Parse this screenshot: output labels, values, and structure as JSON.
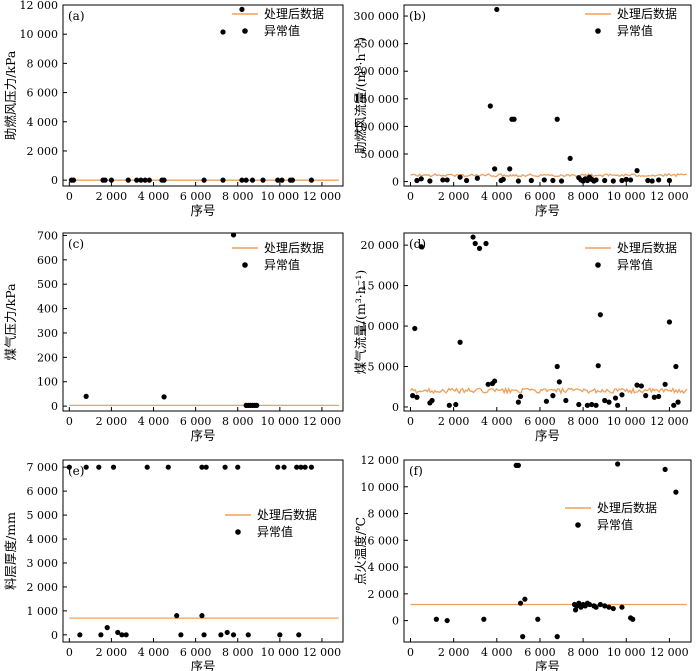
{
  "colors": {
    "line": "#f0a05a",
    "marker": "#000000",
    "axis": "#000000"
  },
  "legend": {
    "line": "处理后数据",
    "marker": "异常值"
  },
  "chart_data": [
    {
      "id": "a",
      "tag": "(a)",
      "type": "scatter",
      "xlabel": "序号",
      "ylabel": "助燃风压力/kPa",
      "xlim": [
        -300,
        13000
      ],
      "ylim": [
        -400,
        12000
      ],
      "xticks": [
        0,
        2000,
        4000,
        6000,
        8000,
        10000,
        12000
      ],
      "xticklabels": [
        "0",
        "2 000",
        "4 000",
        "6 000",
        "8 000",
        "10 000",
        "12 000"
      ],
      "yticks": [
        0,
        2000,
        4000,
        6000,
        8000,
        10000,
        12000
      ],
      "yticklabels": [
        "0",
        "2 000",
        "4 000",
        "6 000",
        "8 000",
        "10 000",
        "12 000"
      ],
      "legend_pos": "top-right",
      "processed_level": 0,
      "processed_noise": 0,
      "outliers": {
        "x": [
          100,
          200,
          1600,
          1700,
          2000,
          2800,
          3200,
          3400,
          3600,
          3800,
          4400,
          4500,
          6400,
          7300,
          8200,
          8400,
          8700,
          9200,
          9900,
          10100,
          10500,
          10600,
          11500,
          7300,
          8200
        ],
        "y": [
          0,
          0,
          0,
          0,
          0,
          0,
          0,
          0,
          0,
          0,
          0,
          0,
          0,
          0,
          0,
          0,
          0,
          0,
          0,
          0,
          0,
          0,
          0,
          10150,
          11700
        ]
      }
    },
    {
      "id": "b",
      "tag": "(b)",
      "type": "scatter",
      "xlabel": "序号",
      "ylabel": "助燃风流量/(m³·h⁻¹)",
      "xlim": [
        -300,
        13000
      ],
      "ylim": [
        -8000,
        320000
      ],
      "xticks": [
        0,
        2000,
        4000,
        6000,
        8000,
        10000,
        12000
      ],
      "xticklabels": [
        "0",
        "2 000",
        "4 000",
        "6 000",
        "8 000",
        "10 000",
        "12 000"
      ],
      "yticks": [
        0,
        50000,
        100000,
        150000,
        200000,
        250000,
        300000
      ],
      "yticklabels": [
        "0",
        "50 000",
        "100 000",
        "150 000",
        "200 000",
        "250 000",
        "300 000"
      ],
      "legend_pos": "top-right",
      "processed_level": 11500,
      "processed_noise": 2500,
      "outliers": {
        "x": [
          500,
          1700,
          2300,
          3700,
          3900,
          4000,
          4600,
          4700,
          4800,
          6800,
          7400,
          300,
          900,
          1500,
          2600,
          3100,
          4200,
          4300,
          5000,
          5600,
          6200,
          6600,
          7000,
          7800,
          7900,
          8000,
          8100,
          8200,
          8300,
          8400,
          8600,
          9000,
          9400,
          9800,
          10200,
          10500,
          11000,
          11200,
          11500,
          12000,
          8500,
          10000
        ],
        "y": [
          5000,
          3000,
          8000,
          137000,
          23000,
          312000,
          23000,
          113000,
          113000,
          113000,
          42000,
          2000,
          1000,
          3000,
          2000,
          6000,
          2000,
          4000,
          1000,
          2000,
          3000,
          2000,
          1000,
          7000,
          3000,
          1000,
          5000,
          2000,
          8000,
          4000,
          3000,
          2000,
          1000,
          2000,
          3000,
          20000,
          2000,
          1000,
          3000,
          2000,
          1000,
          4000
        ]
      }
    },
    {
      "id": "c",
      "tag": "(c)",
      "type": "scatter",
      "xlabel": "序号",
      "ylabel": "煤气压力/kPa",
      "xlim": [
        -300,
        13000
      ],
      "ylim": [
        -20,
        710
      ],
      "xticks": [
        0,
        2000,
        4000,
        6000,
        8000,
        10000,
        12000
      ],
      "xticklabels": [
        "0",
        "2 000",
        "4 000",
        "6 000",
        "8 000",
        "10 000",
        "12 000"
      ],
      "yticks": [
        0,
        100,
        200,
        300,
        400,
        500,
        600,
        700
      ],
      "yticklabels": [
        "0",
        "100",
        "200",
        "300",
        "400",
        "500",
        "600",
        "700"
      ],
      "legend_pos": "top-right",
      "processed_level": 3,
      "processed_noise": 0,
      "outliers": {
        "x": [
          800,
          4500,
          7800,
          8400,
          8500,
          8600,
          8700,
          8800,
          8900
        ],
        "y": [
          40,
          38,
          702,
          3,
          3,
          3,
          3,
          3,
          3
        ]
      }
    },
    {
      "id": "d",
      "tag": "(d)",
      "type": "scatter",
      "xlabel": "序号",
      "ylabel": "煤气流量/(m³·h⁻¹)",
      "xlim": [
        -300,
        13000
      ],
      "ylim": [
        -500,
        21500
      ],
      "xticks": [
        0,
        2000,
        4000,
        6000,
        8000,
        10000,
        12000
      ],
      "xticklabels": [
        "0",
        "2 000",
        "4 000",
        "6 000",
        "8 000",
        "10 000",
        "12 000"
      ],
      "yticks": [
        0,
        5000,
        10000,
        15000,
        20000
      ],
      "yticklabels": [
        "0",
        "5 000",
        "10 000",
        "15 000",
        "20 000"
      ],
      "legend_pos": "top-right",
      "processed_level": 2000,
      "processed_noise": 300,
      "outliers": {
        "x": [
          200,
          300,
          500,
          900,
          1800,
          2100,
          2300,
          2900,
          3000,
          3200,
          3500,
          3600,
          3800,
          3900,
          5000,
          5100,
          6300,
          6600,
          6800,
          6900,
          7200,
          7800,
          8200,
          8400,
          8600,
          8700,
          8800,
          9000,
          9200,
          9500,
          9600,
          9800,
          10500,
          10700,
          10900,
          11300,
          11500,
          11800,
          12000,
          12200,
          12300,
          12400,
          100,
          1000
        ],
        "y": [
          9700,
          1200,
          19800,
          500,
          200,
          300,
          8000,
          21000,
          20200,
          19600,
          20200,
          2800,
          2900,
          3200,
          600,
          1300,
          700,
          1400,
          5000,
          3100,
          800,
          300,
          200,
          300,
          200,
          5100,
          11400,
          800,
          600,
          1100,
          200,
          1500,
          2700,
          2600,
          1400,
          1200,
          1300,
          2800,
          10500,
          200,
          5000,
          600,
          1400,
          800
        ]
      }
    },
    {
      "id": "e",
      "tag": "(e)",
      "type": "scatter",
      "xlabel": "序号",
      "ylabel": "料层厚度/mm",
      "xlim": [
        -300,
        13000
      ],
      "ylim": [
        -300,
        7300
      ],
      "xticks": [
        0,
        2000,
        4000,
        6000,
        8000,
        10000,
        12000
      ],
      "xticklabels": [
        "0",
        "2 000",
        "4 000",
        "6 000",
        "8 000",
        "10 000",
        "12 000"
      ],
      "yticks": [
        0,
        1000,
        2000,
        3000,
        4000,
        5000,
        6000,
        7000
      ],
      "yticklabels": [
        "0",
        "1 000",
        "2 000",
        "3 000",
        "4 000",
        "5 000",
        "6 000",
        "7 000"
      ],
      "legend_pos": "middle-right",
      "processed_level": 700,
      "processed_noise": 0,
      "outliers": {
        "x": [
          0,
          800,
          1400,
          2100,
          3700,
          4700,
          6300,
          6500,
          7400,
          8000,
          9900,
          10200,
          10800,
          11000,
          11200,
          11500,
          500,
          1500,
          1800,
          2300,
          2500,
          2700,
          5100,
          5300,
          6300,
          6400,
          7200,
          7500,
          7800,
          8500,
          10000,
          10900
        ],
        "y": [
          7000,
          7000,
          7000,
          7000,
          7000,
          7000,
          7000,
          7000,
          7000,
          7000,
          7000,
          7000,
          7000,
          7000,
          7000,
          7000,
          0,
          0,
          300,
          100,
          0,
          0,
          800,
          0,
          800,
          0,
          0,
          100,
          0,
          0,
          0,
          0
        ]
      }
    },
    {
      "id": "f",
      "tag": "(f)",
      "type": "scatter",
      "xlabel": "序号",
      "ylabel": "点火温度/℃",
      "xlim": [
        -300,
        13000
      ],
      "ylim": [
        -1600,
        12000
      ],
      "xticks": [
        0,
        2000,
        4000,
        6000,
        8000,
        10000,
        12000
      ],
      "xticklabels": [
        "0",
        "2 000",
        "4 000",
        "6 000",
        "8 000",
        "10 000",
        "12 000"
      ],
      "yticks": [
        0,
        2000,
        4000,
        6000,
        8000,
        10000,
        12000
      ],
      "yticklabels": [
        "0",
        "2 000",
        "4 000",
        "6 000",
        "8 000",
        "10 000",
        "12 000"
      ],
      "legend_pos": "middle-right",
      "processed_level": 1200,
      "processed_noise": 0,
      "outliers": {
        "x": [
          1200,
          1700,
          3400,
          4900,
          5000,
          5100,
          5200,
          5300,
          5900,
          6800,
          7600,
          7700,
          7800,
          7900,
          8000,
          8100,
          8200,
          8300,
          8500,
          8600,
          8800,
          9000,
          9200,
          9400,
          9800,
          10200,
          10300,
          11800,
          12300,
          9600,
          7650
        ],
        "y": [
          100,
          0,
          100,
          11600,
          11600,
          1300,
          -1200,
          1600,
          100,
          -1200,
          1200,
          1100,
          1300,
          1000,
          1200,
          1100,
          1300,
          1200,
          1100,
          1000,
          1200,
          1100,
          1000,
          900,
          1000,
          200,
          100,
          11300,
          9600,
          11700,
          800
        ]
      }
    }
  ]
}
